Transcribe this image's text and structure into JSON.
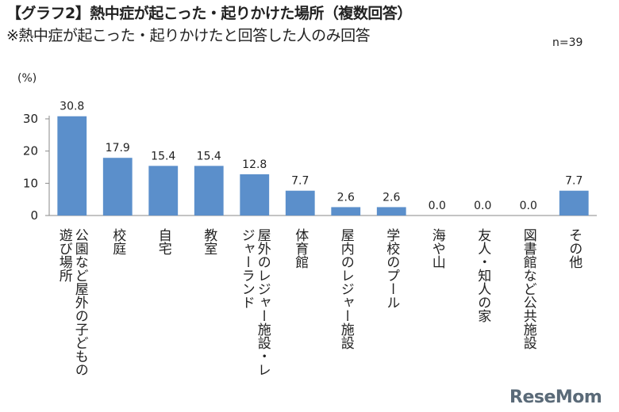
{
  "header": {
    "title": "【グラフ2】熱中症が起こった・起りかけた場所（複数回答）",
    "subtitle": "※熱中症が起こった・起りかけたと回答した人のみ回答",
    "n_label": "n=39"
  },
  "logo": {
    "text": "ReseMom",
    "color": "#5a6a78"
  },
  "chart_data": {
    "type": "bar",
    "title": "【グラフ2】熱中症が起こった・起りかけた場所（複数回答）",
    "subtitle": "※熱中症が起こった・起りかけたと回答した人のみ回答",
    "ylabel": "(%)",
    "ylim": [
      0,
      30
    ],
    "yticks": [
      0,
      10,
      20,
      30
    ],
    "grid": false,
    "bar_color": "#5b8fcb",
    "categories": [
      "公園など屋外の子どもの遊び場所",
      "校庭",
      "自宅",
      "教室",
      "屋外のレジャー施設・レジャーランド",
      "体育館",
      "屋内のレジャー施設",
      "学校のプール",
      "海や山",
      "友人・知人の家",
      "図書館など公共施設",
      "その他"
    ],
    "values": [
      30.8,
      17.9,
      15.4,
      15.4,
      12.8,
      7.7,
      2.6,
      2.6,
      0.0,
      0.0,
      0.0,
      7.7
    ],
    "value_labels": [
      "30.8",
      "17.9",
      "15.4",
      "15.4",
      "12.8",
      "7.7",
      "2.6",
      "2.6",
      "0.0",
      "0.0",
      "0.0",
      "7.7"
    ],
    "category_label_columns": [
      [
        "公園など屋外の子どもの",
        "遊び場所"
      ],
      [
        "校庭"
      ],
      [
        "自宅"
      ],
      [
        "教室"
      ],
      [
        "屋外のレジャー施設・レ",
        "ジャーランド"
      ],
      [
        "体育館"
      ],
      [
        "屋内のレジャー施設"
      ],
      [
        "学校のプール"
      ],
      [
        "海や山"
      ],
      [
        "友人・知人の家"
      ],
      [
        "図書館など公共施設"
      ],
      [
        "その他"
      ]
    ]
  }
}
